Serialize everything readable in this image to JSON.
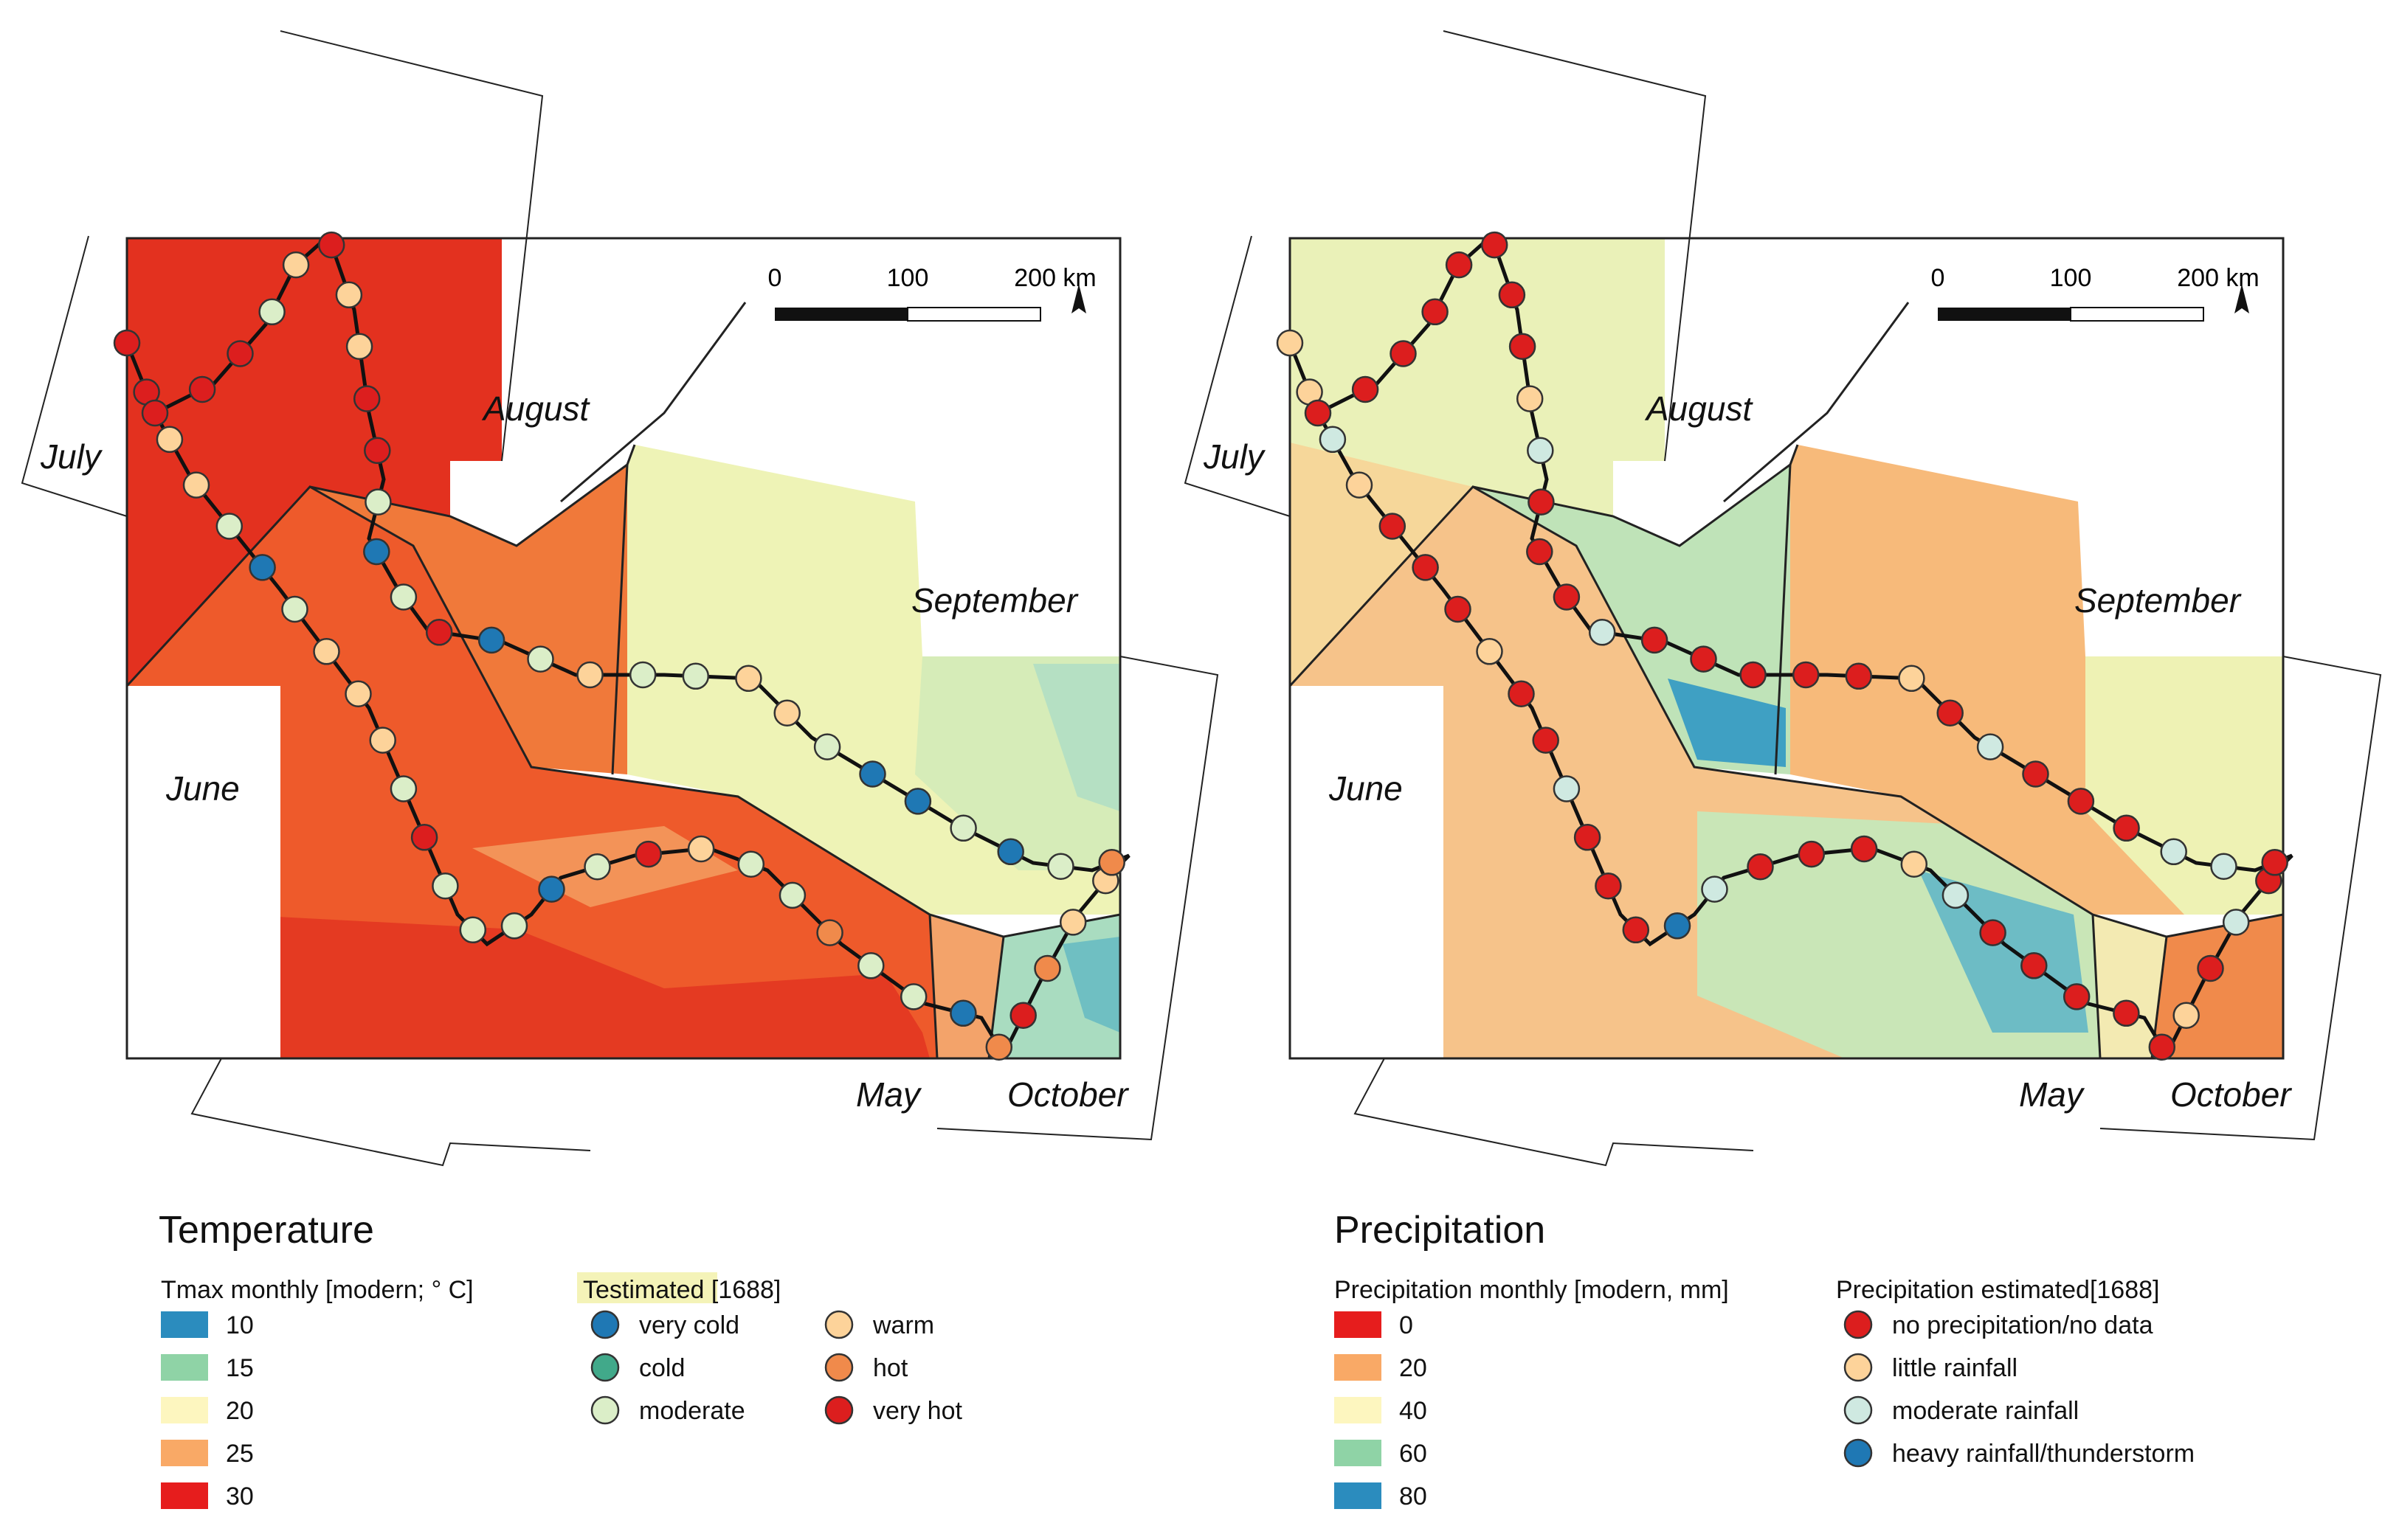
{
  "palette": {
    "t10": "#2b8cbe",
    "t15": "#8fd3a6",
    "t20": "#fdf6bf",
    "t25": "#f9a966",
    "t30": "#e61d1d",
    "very_cold": "#1f78b4",
    "cold": "#41a98a",
    "moderate": "#dbeec8",
    "warm": "#fdd39a",
    "hot": "#f08a4b",
    "very_hot": "#dc1e1e",
    "p0": "#e61d1d",
    "p20": "#f9a966",
    "p40": "#fdf6bf",
    "p60": "#8fd3a6",
    "p80": "#2b8cbe",
    "no_precip": "#dc1e1e",
    "little": "#fdd39a",
    "moderate_rain": "#cfe9e1",
    "heavy": "#1f78b4"
  },
  "maps": [
    {
      "id": "temperature",
      "month_labels": [
        "July",
        "August",
        "September",
        "June",
        "May",
        "October"
      ],
      "scale": {
        "ticks": [
          "0",
          "100",
          "200 km"
        ]
      },
      "legend": {
        "title": "Temperature",
        "raster_title": "Tmax monthly [modern; ° C]",
        "raster_classes": [
          {
            "label": "10",
            "color": "t10"
          },
          {
            "label": "15",
            "color": "t15"
          },
          {
            "label": "20",
            "color": "t20"
          },
          {
            "label": "25",
            "color": "t25"
          },
          {
            "label": "30",
            "color": "t30"
          }
        ],
        "point_title": "Testimated [1688]",
        "point_classes": [
          {
            "label": "very cold",
            "color": "very_cold"
          },
          {
            "label": "cold",
            "color": "cold"
          },
          {
            "label": "moderate",
            "color": "moderate"
          },
          {
            "label": "warm",
            "color": "warm"
          },
          {
            "label": "hot",
            "color": "hot"
          },
          {
            "label": "very hot",
            "color": "very_hot"
          }
        ]
      }
    },
    {
      "id": "precipitation",
      "month_labels": [
        "July",
        "August",
        "September",
        "June",
        "May",
        "October"
      ],
      "scale": {
        "ticks": [
          "0",
          "100",
          "200 km"
        ]
      },
      "legend": {
        "title": "Precipitation",
        "raster_title": "Precipitation monthly [modern, mm]",
        "raster_classes": [
          {
            "label": "0",
            "color": "p0"
          },
          {
            "label": "20",
            "color": "p20"
          },
          {
            "label": "40",
            "color": "p40"
          },
          {
            "label": "60",
            "color": "p60"
          },
          {
            "label": "80",
            "color": "p80"
          }
        ],
        "point_title": "Precipitation estimated[1688]",
        "point_classes": [
          {
            "label": "no precipitation/no data",
            "color": "no_precip"
          },
          {
            "label": "little rainfall",
            "color": "little"
          },
          {
            "label": "moderate rainfall",
            "color": "moderate_rain"
          },
          {
            "label": "heavy rainfall/thunderstorm",
            "color": "heavy"
          }
        ]
      }
    }
  ]
}
